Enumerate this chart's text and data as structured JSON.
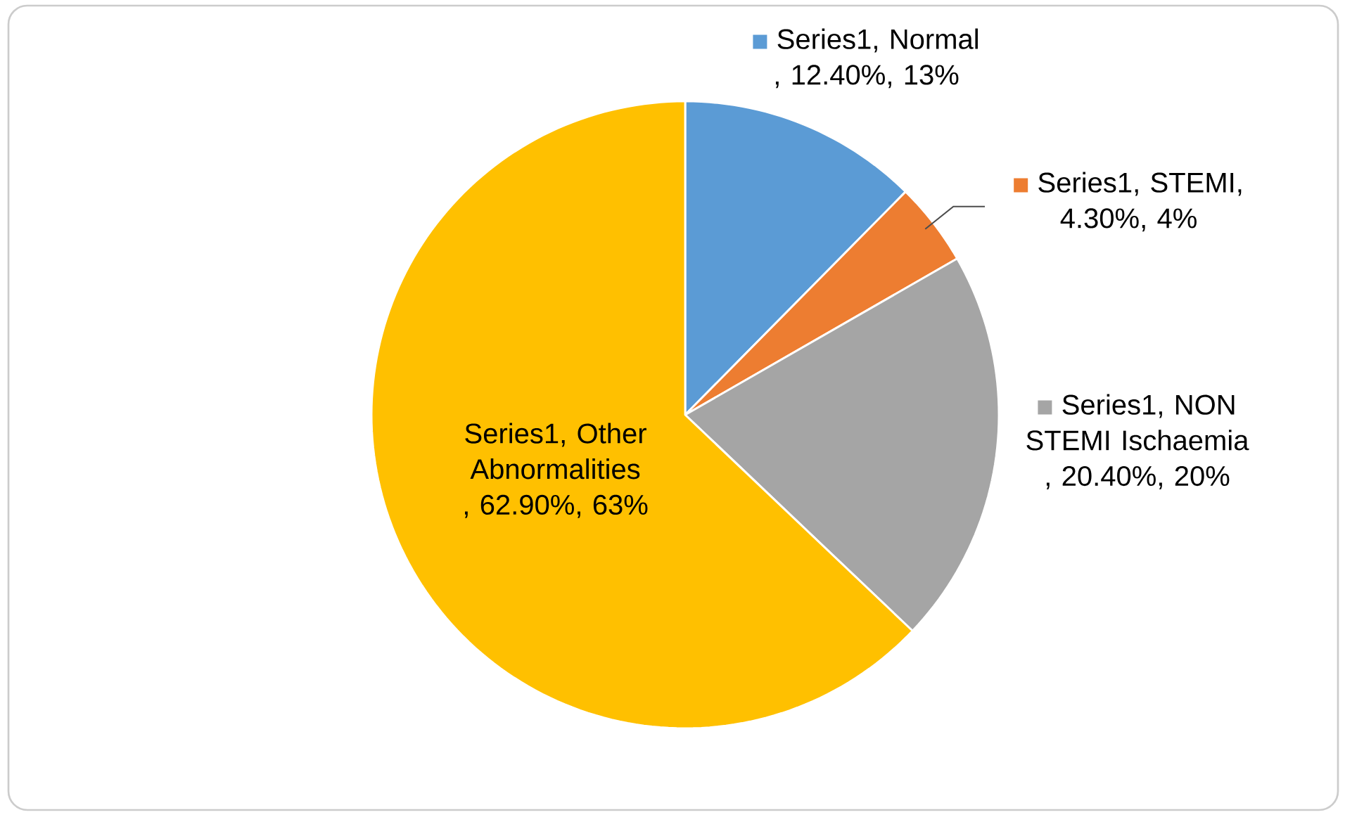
{
  "chart_data": {
    "type": "pie",
    "categories": [
      null,
      null,
      null,
      null
    ],
    "values": [
      12.4,
      4.3,
      20.4,
      62.9
    ],
    "value_labels": [
      "Series1, Normal , 12.40%, 13%",
      "Series1, STEMI, 4.30%, 4%",
      "Series1, NON STEMI Ischaemia , 20.40%, 20%",
      "Series1, Other Abnormalities , 62.90%, 63%"
    ],
    "colors": [
      "#5b9bd5",
      "#ed7d31",
      "#a5a5a5",
      "#ffc000"
    ]
  }
}
